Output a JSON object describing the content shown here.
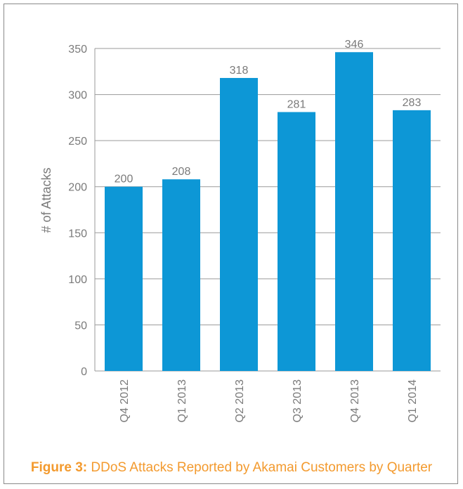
{
  "chart_data": {
    "type": "bar",
    "categories": [
      "Q4 2012",
      "Q1 2013",
      "Q2 2013",
      "Q3 2013",
      "Q4 2013",
      "Q1 2014"
    ],
    "values": [
      200,
      208,
      318,
      281,
      346,
      283
    ],
    "data_labels": [
      "200",
      "208",
      "318",
      "281",
      "346",
      "283"
    ],
    "ylabel": "# of Attacks",
    "xlabel": "",
    "ylim": [
      0,
      350
    ],
    "yticks": [
      0,
      50,
      100,
      150,
      200,
      250,
      300,
      350
    ],
    "grid": true,
    "bar_color": "#0d97d6",
    "label_color": "#7a7a7a"
  },
  "caption": {
    "figure_label": "Figure 3:",
    "text": "DDoS Attacks Reported by Akamai Customers by Quarter",
    "color": "#f39a2e"
  }
}
